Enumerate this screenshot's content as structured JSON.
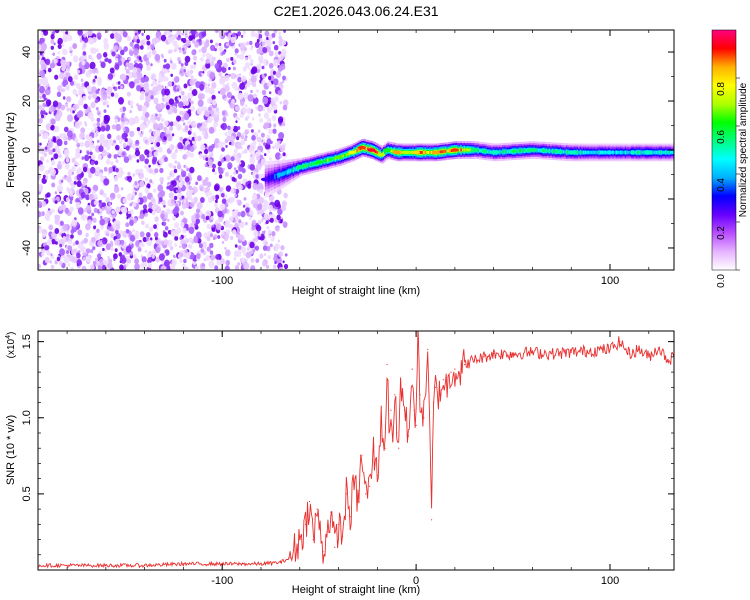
{
  "chart_data": [
    {
      "type": "heatmap",
      "title": "C2E1.2026.043.06.24.E31",
      "xlabel": "Height of straight line (km)",
      "ylabel": "Frequency (Hz)",
      "xlim": [
        -195,
        133
      ],
      "ylim": [
        -49,
        49
      ],
      "xticks": [
        "-100",
        "100"
      ],
      "xtick_values": [
        -100,
        100
      ],
      "yticks": [
        "40",
        "20",
        "0",
        "-20",
        "-40"
      ],
      "ytick_values": [
        40,
        20,
        0,
        -20,
        -40
      ],
      "colorbar": {
        "label": "Normalized spectral amplitude",
        "range": [
          0,
          1
        ],
        "ticks": [
          "0.0",
          "0.2",
          "0.4",
          "0.6",
          "0.8"
        ],
        "tick_values": [
          0,
          0.2,
          0.4,
          0.6,
          0.8
        ],
        "colors": [
          "#ffffff",
          "#e6b3ff",
          "#b94dff",
          "#6600ff",
          "#0000ff",
          "#00b0ff",
          "#00ffff",
          "#00ff80",
          "#00ff00",
          "#b0ff00",
          "#ffff00",
          "#ffb000",
          "#ff0000",
          "#ff0080"
        ]
      },
      "noise_region": {
        "x": [
          -195,
          -70
        ],
        "y": [
          -49,
          49
        ]
      },
      "ridge": {
        "x": [
          -78,
          -70,
          -60,
          -50,
          -40,
          -33,
          -28,
          -23,
          -18,
          -15,
          -10,
          -5,
          0,
          10,
          20,
          30,
          40,
          60,
          80,
          100,
          120,
          133
        ],
        "y": [
          -12,
          -10,
          -7,
          -5,
          -3,
          -1,
          1,
          0,
          -2,
          0,
          -1,
          -1,
          -1,
          -1,
          0,
          0,
          -1,
          0,
          -1,
          -1,
          -1,
          -1
        ],
        "amplitude": [
          0.25,
          0.4,
          0.55,
          0.6,
          0.65,
          0.75,
          0.9,
          0.95,
          0.7,
          0.6,
          0.85,
          0.7,
          0.8,
          0.85,
          0.9,
          0.55,
          0.5,
          0.55,
          0.5,
          0.45,
          0.5,
          0.45
        ]
      }
    },
    {
      "type": "line",
      "xlabel": "Height of straight line (km)",
      "ylabel": "SNR (10 * v/v)",
      "y_multiplier": "(x10",
      "y_multiplier_exp": "4",
      "y_multiplier_close": ")",
      "xlim": [
        -195,
        133
      ],
      "ylim": [
        0,
        1.57
      ],
      "xticks": [
        "-100",
        "0",
        "100"
      ],
      "xtick_values": [
        -100,
        0,
        100
      ],
      "yticks": [
        "1.5",
        "1.0",
        "0.5"
      ],
      "ytick_values": [
        1.5,
        1.0,
        0.5
      ],
      "series": [
        {
          "color": "#e8302e",
          "x": [
            -195,
            -180,
            -160,
            -140,
            -120,
            -100,
            -80,
            -70,
            -65,
            -60,
            -57,
            -55,
            -53,
            -51,
            -50,
            -48,
            -46,
            -44,
            -42,
            -40,
            -38,
            -36,
            -34,
            -32,
            -30,
            -28,
            -26,
            -24,
            -22,
            -20,
            -18,
            -16,
            -15,
            -14,
            -13,
            -12,
            -11,
            -10,
            -9,
            -8,
            -6,
            -4,
            -2,
            -1,
            0,
            1,
            2,
            4,
            6,
            8,
            9,
            10,
            12,
            14,
            16,
            18,
            20,
            22,
            25,
            30,
            35,
            40,
            50,
            60,
            70,
            80,
            90,
            100,
            105,
            110,
            115,
            120,
            125,
            130,
            133
          ],
          "y": [
            0.03,
            0.03,
            0.03,
            0.03,
            0.04,
            0.04,
            0.04,
            0.05,
            0.08,
            0.2,
            0.3,
            0.45,
            0.2,
            0.4,
            0.28,
            0.12,
            0.25,
            0.38,
            0.15,
            0.3,
            0.22,
            0.5,
            0.35,
            0.58,
            0.45,
            0.75,
            0.5,
            0.55,
            0.78,
            0.62,
            0.98,
            0.8,
            1.35,
            0.95,
            1.05,
            0.85,
            1.15,
            0.9,
            0.8,
            1.25,
            1.05,
            0.88,
            1.32,
            1.05,
            0.95,
            1.52,
            1.15,
            1.0,
            1.45,
            0.33,
            1.1,
            1.2,
            1.15,
            1.25,
            1.2,
            1.3,
            1.32,
            1.3,
            1.35,
            1.38,
            1.4,
            1.42,
            1.42,
            1.43,
            1.42,
            1.43,
            1.44,
            1.45,
            1.5,
            1.42,
            1.45,
            1.4,
            1.46,
            1.38,
            1.4
          ]
        }
      ]
    }
  ]
}
